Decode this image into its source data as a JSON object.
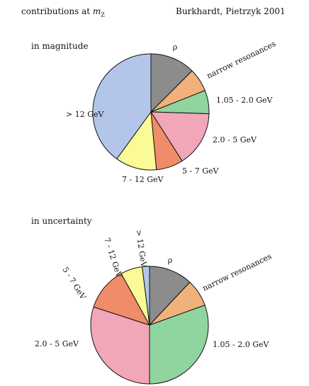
{
  "header": {
    "title": "contributions at m_Z",
    "title_prefix": "contributions at ",
    "title_symbol": "m",
    "title_subscript": "Z",
    "citation": "Burkhardt, Pietrzyk 2001"
  },
  "chart_data": [
    {
      "type": "pie",
      "title": "in magnitude",
      "direction": "clockwise",
      "start": "12 o'clock",
      "slices": [
        {
          "label": "ρ",
          "value": 12.5,
          "color": "#8c8c8c"
        },
        {
          "label": "narrow resonances",
          "value": 6.5,
          "color": "#f0b27a"
        },
        {
          "label": "1.05 - 2.0 GeV",
          "value": 6.5,
          "color": "#90d4a0"
        },
        {
          "label": "2.0 - 5 GeV",
          "value": 15.5,
          "color": "#f2a7b8"
        },
        {
          "label": "5 - 7 GeV",
          "value": 7.5,
          "color": "#f08c68"
        },
        {
          "label": "7 - 12 GeV",
          "value": 11.5,
          "color": "#fafa96"
        },
        {
          "label": "> 12 GeV",
          "value": 40.0,
          "color": "#b3c6ea"
        }
      ]
    },
    {
      "type": "pie",
      "title": "in uncertainty",
      "direction": "clockwise",
      "start": "12 o'clock",
      "slices": [
        {
          "label": "ρ",
          "value": 12.0,
          "color": "#8c8c8c"
        },
        {
          "label": "narrow resonances",
          "value": 7.5,
          "color": "#f0b27a"
        },
        {
          "label": "1.05 - 2.0 GeV",
          "value": 30.5,
          "color": "#90d4a0"
        },
        {
          "label": "2.0 - 5 GeV",
          "value": 30.0,
          "color": "#f2a7b8"
        },
        {
          "label": "5 - 7 GeV",
          "value": 12.0,
          "color": "#f08c68"
        },
        {
          "label": "7 - 12 GeV",
          "value": 6.0,
          "color": "#fafa96"
        },
        {
          "label": "> 12 GeV",
          "value": 2.0,
          "color": "#b3c6ea"
        }
      ]
    }
  ]
}
